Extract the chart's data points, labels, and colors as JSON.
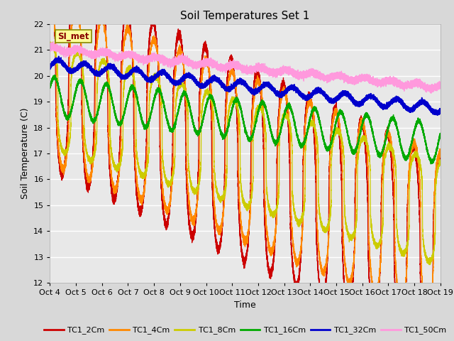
{
  "title": "Soil Temperatures Set 1",
  "xlabel": "Time",
  "ylabel": "Soil Temperature (C)",
  "ylim": [
    12.0,
    22.0
  ],
  "yticks": [
    12.0,
    13.0,
    14.0,
    15.0,
    16.0,
    17.0,
    18.0,
    19.0,
    20.0,
    21.0,
    22.0
  ],
  "xtick_labels": [
    "Oct 4",
    "Oct 5",
    "Oct 6",
    "Oct 7",
    "Oct 8",
    "Oct 9",
    "Oct 10",
    "Oct 11",
    "Oct 12",
    "Oct 13",
    "Oct 14",
    "Oct 15",
    "Oct 16",
    "Oct 17",
    "Oct 18",
    "Oct 19"
  ],
  "series_colors": {
    "TC1_2Cm": "#cc0000",
    "TC1_4Cm": "#ff8800",
    "TC1_8Cm": "#cccc00",
    "TC1_16Cm": "#00aa00",
    "TC1_32Cm": "#0000cc",
    "TC1_50Cm": "#ff99dd"
  },
  "watermark": "SI_met",
  "bg_color": "#d8d8d8",
  "plot_bg_color": "#e8e8e8",
  "n_days": 15
}
